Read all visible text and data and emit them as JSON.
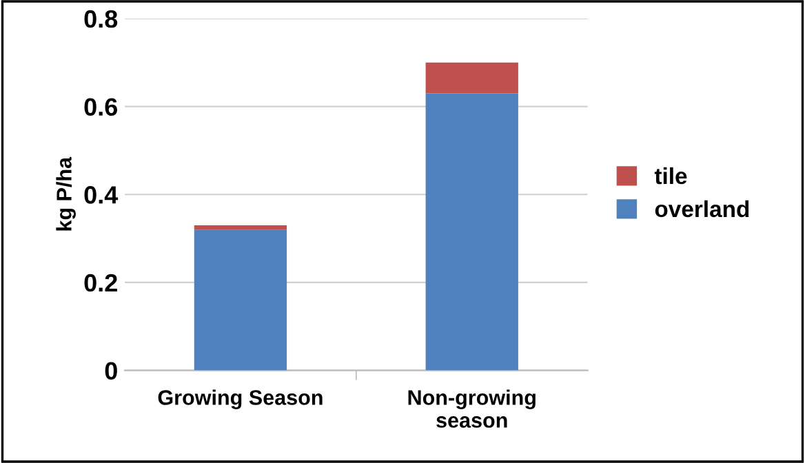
{
  "chart_data": {
    "type": "bar",
    "stacked": true,
    "ylabel": "kg P/ha",
    "categories": [
      "Growing Season",
      "Non-growing\nseason"
    ],
    "series": [
      {
        "name": "overland",
        "color": "#4f81bd",
        "values": [
          0.32,
          0.63
        ]
      },
      {
        "name": "tile",
        "color": "#c0504d",
        "values": [
          0.01,
          0.07
        ]
      }
    ],
    "ylim": [
      0,
      0.8
    ],
    "yticks": [
      0,
      0.2,
      0.4,
      0.6,
      0.8
    ],
    "grid": "y",
    "legend": "right"
  }
}
